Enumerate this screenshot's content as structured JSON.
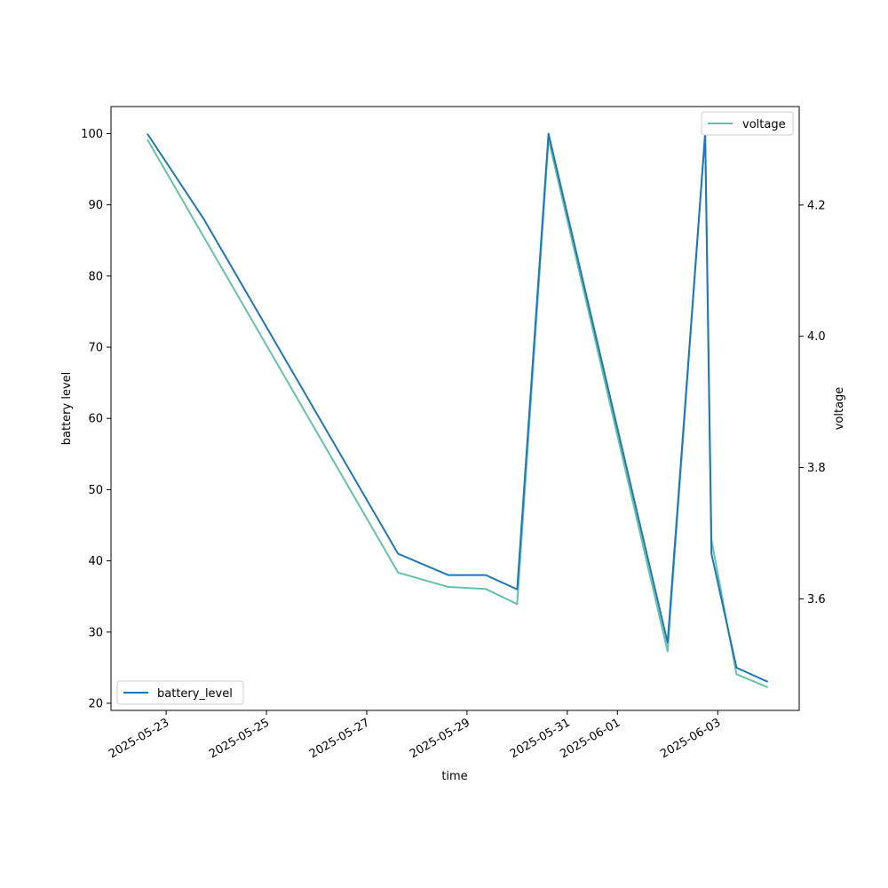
{
  "chart_data": {
    "type": "line",
    "xlabel": "time",
    "ylabel": "battery level",
    "y2label": "voltage",
    "x_ticks": [
      "2025-05-23",
      "2025-05-25",
      "2025-05-27",
      "2025-05-29",
      "2025-05-31",
      "2025-06-01",
      "2025-06-03"
    ],
    "xlim": [
      "2025-05-21 21:36",
      "2025-06-04 15:00"
    ],
    "ylim": [
      19.0,
      103.8
    ],
    "y_ticks": [
      20,
      30,
      40,
      50,
      60,
      70,
      80,
      90,
      100
    ],
    "y2lim": [
      3.43,
      4.35
    ],
    "y2_ticks": [
      3.6,
      3.8,
      4.0,
      4.2
    ],
    "series": [
      {
        "name": "battery_level",
        "axis": "left",
        "color": "#1f77b4",
        "legend_position": "lower-left",
        "points": [
          {
            "x": "2025-05-22 15:00",
            "y": 100
          },
          {
            "x": "2025-05-23 18:00",
            "y": 88
          },
          {
            "x": "2025-05-27 15:00",
            "y": 41
          },
          {
            "x": "2025-05-28 15:00",
            "y": 38
          },
          {
            "x": "2025-05-29 09:00",
            "y": 38
          },
          {
            "x": "2025-05-30 00:00",
            "y": 36
          },
          {
            "x": "2025-05-30 15:00",
            "y": 100
          },
          {
            "x": "2025-06-02 00:00",
            "y": 28.5
          },
          {
            "x": "2025-06-02 18:00",
            "y": 100
          },
          {
            "x": "2025-06-02 21:00",
            "y": 41
          },
          {
            "x": "2025-06-03 09:00",
            "y": 25
          },
          {
            "x": "2025-06-04 00:00",
            "y": 23
          }
        ]
      },
      {
        "name": "voltage",
        "axis": "right",
        "color": "#66c2a5",
        "legend_position": "upper-right",
        "points": [
          {
            "x": "2025-05-22 15:00",
            "y": 4.3
          },
          {
            "x": "2025-05-27 15:00",
            "y": 3.64
          },
          {
            "x": "2025-05-28 15:00",
            "y": 3.618
          },
          {
            "x": "2025-05-29 09:00",
            "y": 3.615
          },
          {
            "x": "2025-05-30 00:00",
            "y": 3.592
          },
          {
            "x": "2025-05-30 15:00",
            "y": 4.3
          },
          {
            "x": "2025-06-02 00:00",
            "y": 3.52
          },
          {
            "x": "2025-06-02 18:00",
            "y": 4.31
          },
          {
            "x": "2025-06-02 21:00",
            "y": 3.69
          },
          {
            "x": "2025-06-03 09:00",
            "y": 3.485
          },
          {
            "x": "2025-06-04 00:00",
            "y": 3.465
          }
        ]
      }
    ]
  }
}
